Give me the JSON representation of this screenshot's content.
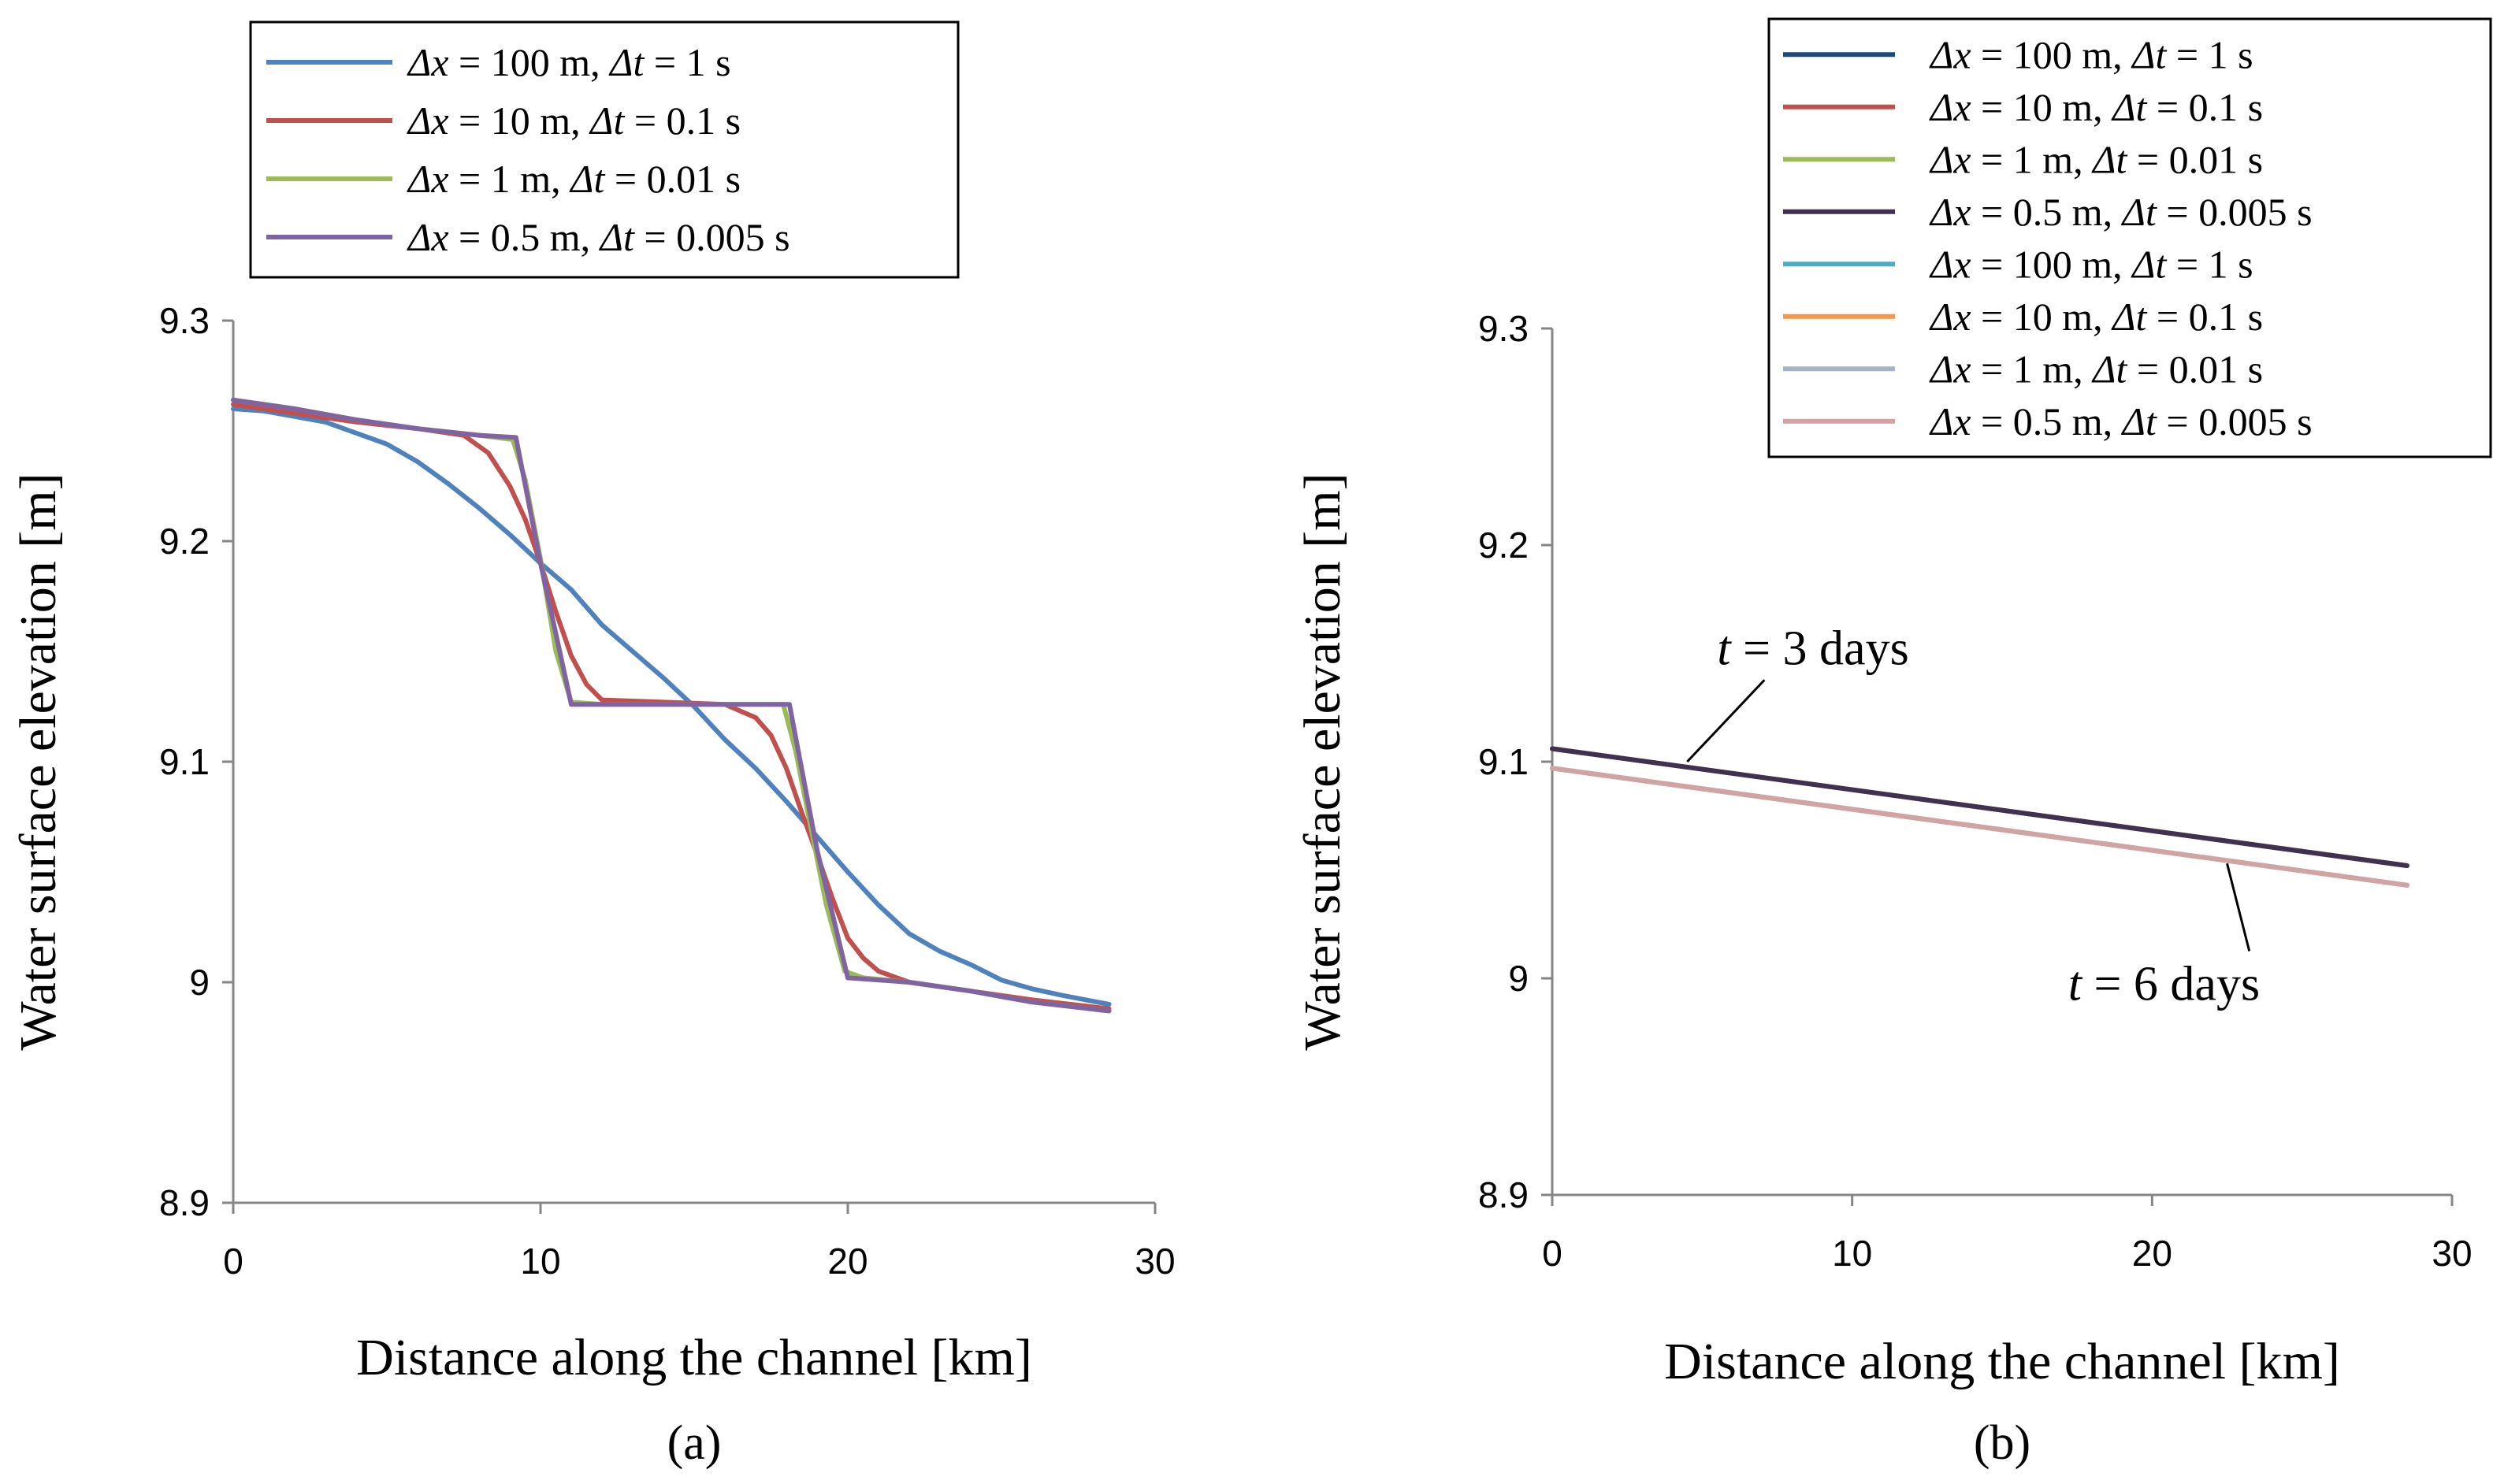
{
  "chart_data": [
    {
      "type": "line",
      "panel": "a",
      "caption": "(a)",
      "xlabel": "Distance along the channel [km]",
      "ylabel": "Water surface elevation [m]",
      "xlim": [
        0,
        30
      ],
      "ylim": [
        8.9,
        9.3
      ],
      "xticks": [
        "0",
        "10",
        "20",
        "30"
      ],
      "yticks": [
        "8.9",
        "9",
        "9.1",
        "9.2",
        "9.3"
      ],
      "grid": false,
      "legend_position": "top",
      "series": [
        {
          "name": "Δx = 100 m, Δt = 1 s",
          "label_dx": "Δx",
          "label_mid": " = 100 m, ",
          "label_dt": "Δt",
          "label_end": " = 1 s",
          "color": "#4F81BD",
          "x": [
            0,
            1,
            3,
            5,
            6,
            7,
            8,
            9,
            10,
            11,
            12,
            13,
            14,
            15,
            16,
            17,
            18,
            19,
            20,
            21,
            22,
            23,
            24,
            25,
            26,
            27,
            28.5
          ],
          "y": [
            9.26,
            9.259,
            9.254,
            9.244,
            9.236,
            9.226,
            9.215,
            9.203,
            9.19,
            9.178,
            9.162,
            9.15,
            9.138,
            9.125,
            9.11,
            9.097,
            9.082,
            9.066,
            9.05,
            9.035,
            9.022,
            9.014,
            9.008,
            9.001,
            8.997,
            8.994,
            8.99
          ]
        },
        {
          "name": "Δx = 10 m, Δt = 0.1 s",
          "label_dx": "Δx",
          "label_mid": " = 10 m, ",
          "label_dt": "Δt",
          "label_end": " = 0.1 s",
          "color": "#C0504D",
          "x": [
            0,
            2,
            4,
            6,
            7.5,
            8.3,
            9,
            9.5,
            10,
            10.5,
            11,
            11.5,
            12,
            14,
            16,
            17,
            17.5,
            18,
            18.5,
            19,
            19.5,
            20,
            20.5,
            21,
            22,
            24,
            26,
            28.5
          ],
          "y": [
            9.262,
            9.258,
            9.254,
            9.251,
            9.248,
            9.24,
            9.225,
            9.21,
            9.19,
            9.168,
            9.148,
            9.135,
            9.128,
            9.127,
            9.126,
            9.12,
            9.112,
            9.097,
            9.077,
            9.058,
            9.038,
            9.02,
            9.011,
            9.005,
            9.0,
            8.996,
            8.992,
            8.988
          ]
        },
        {
          "name": "Δx = 1 m, Δt = 0.01 s",
          "label_dx": "Δx",
          "label_mid": " = 1 m, ",
          "label_dt": "Δt",
          "label_end": " = 0.01 s",
          "color": "#9BBB59",
          "x": [
            0,
            2,
            4,
            6,
            8,
            9.1,
            9.5,
            10,
            10.5,
            11,
            12,
            14,
            16,
            17.9,
            18.3,
            18.8,
            19.3,
            19.9,
            20.5,
            22,
            24,
            26,
            28.5
          ],
          "y": [
            9.264,
            9.26,
            9.255,
            9.251,
            9.248,
            9.246,
            9.228,
            9.192,
            9.15,
            9.127,
            9.126,
            9.126,
            9.126,
            9.126,
            9.105,
            9.07,
            9.035,
            9.005,
            9.002,
            9.0,
            8.996,
            8.991,
            8.987
          ]
        },
        {
          "name": "Δx = 0.5 m, Δt = 0.005 s",
          "label_dx": "Δx",
          "label_mid": " = 0.5 m, ",
          "label_dt": "Δt",
          "label_end": " = 0.005 s",
          "color": "#8064A2",
          "x": [
            0,
            2,
            4,
            6,
            8,
            9.2,
            10,
            11,
            12,
            14,
            16,
            18.1,
            19,
            20,
            22,
            24,
            26,
            28.5
          ],
          "y": [
            9.264,
            9.26,
            9.255,
            9.251,
            9.248,
            9.247,
            9.19,
            9.126,
            9.126,
            9.126,
            9.126,
            9.126,
            9.06,
            9.002,
            9.0,
            8.996,
            8.991,
            8.987
          ]
        }
      ]
    },
    {
      "type": "line",
      "panel": "b",
      "caption": "(b)",
      "xlabel": "Distance along the channel [km]",
      "ylabel": "Water surface elevation [m]",
      "xlim": [
        0,
        30
      ],
      "ylim": [
        8.9,
        9.3
      ],
      "xticks": [
        "0",
        "10",
        "20",
        "30"
      ],
      "yticks": [
        "8.9",
        "9",
        "9.1",
        "9.2",
        "9.3"
      ],
      "grid": false,
      "legend_position": "top-right",
      "annotations": [
        {
          "prefix": "t",
          "text": " = 3 days",
          "x": 5.5,
          "y": 9.145,
          "arrow_to": [
            4.5,
            9.1
          ]
        },
        {
          "prefix": "t",
          "text": " = 6 days",
          "x": 17.2,
          "y": 8.99,
          "arrow_to": [
            22.5,
            9.053
          ]
        }
      ],
      "series": [
        {
          "name": "Δx = 100 m, Δt = 1 s",
          "label_dx": "Δx",
          "label_mid": " = 100 m, ",
          "label_dt": "Δt",
          "label_end": " = 1 s",
          "color": "#1F497D",
          "group": "t = 3 days",
          "x": [
            0,
            28.5
          ],
          "y": [
            9.106,
            9.052
          ]
        },
        {
          "name": "Δx = 10 m, Δt = 0.1 s",
          "label_dx": "Δx",
          "label_mid": " = 10 m, ",
          "label_dt": "Δt",
          "label_end": " = 0.1 s",
          "color": "#C0504D",
          "group": "t = 3 days",
          "x": [
            0,
            28.5
          ],
          "y": [
            9.106,
            9.052
          ]
        },
        {
          "name": "Δx = 1 m, Δt = 0.01 s",
          "label_dx": "Δx",
          "label_mid": " = 1 m, ",
          "label_dt": "Δt",
          "label_end": " = 0.01 s",
          "color": "#9BBB59",
          "group": "t = 3 days",
          "x": [
            0,
            28.5
          ],
          "y": [
            9.106,
            9.052
          ]
        },
        {
          "name": "Δx = 0.5 m, Δt = 0.005 s",
          "label_dx": "Δx",
          "label_mid": " = 0.5 m, ",
          "label_dt": "Δt",
          "label_end": " = 0.005 s",
          "color": "#403152",
          "group": "t = 3 days",
          "x": [
            0,
            28.5
          ],
          "y": [
            9.106,
            9.052
          ]
        },
        {
          "name": "Δx = 100 m, Δt = 1 s",
          "label_dx": "Δx",
          "label_mid": " = 100 m, ",
          "label_dt": "Δt",
          "label_end": " = 1 s",
          "color": "#4BACC6",
          "group": "t = 6 days",
          "x": [
            0,
            28.5
          ],
          "y": [
            9.097,
            9.043
          ]
        },
        {
          "name": "Δx = 10 m, Δt = 0.1 s",
          "label_dx": "Δx",
          "label_mid": " = 10 m, ",
          "label_dt": "Δt",
          "label_end": " = 0.1 s",
          "color": "#F79646",
          "group": "t = 6 days",
          "x": [
            0,
            28.5
          ],
          "y": [
            9.097,
            9.043
          ]
        },
        {
          "name": "Δx = 1 m, Δt = 0.01 s",
          "label_dx": "Δx",
          "label_mid": " = 1 m, ",
          "label_dt": "Δt",
          "label_end": " = 0.01 s",
          "color": "#A5B3C9",
          "group": "t = 6 days",
          "x": [
            0,
            28.5
          ],
          "y": [
            9.097,
            9.043
          ]
        },
        {
          "name": "Δx = 0.5 m, Δt = 0.005 s",
          "label_dx": "Δx",
          "label_mid": " = 0.5 m, ",
          "label_dt": "Δt",
          "label_end": " = 0.005 s",
          "color": "#D1A3A3",
          "group": "t = 6 days",
          "x": [
            0,
            28.5
          ],
          "y": [
            9.097,
            9.043
          ]
        }
      ]
    }
  ]
}
